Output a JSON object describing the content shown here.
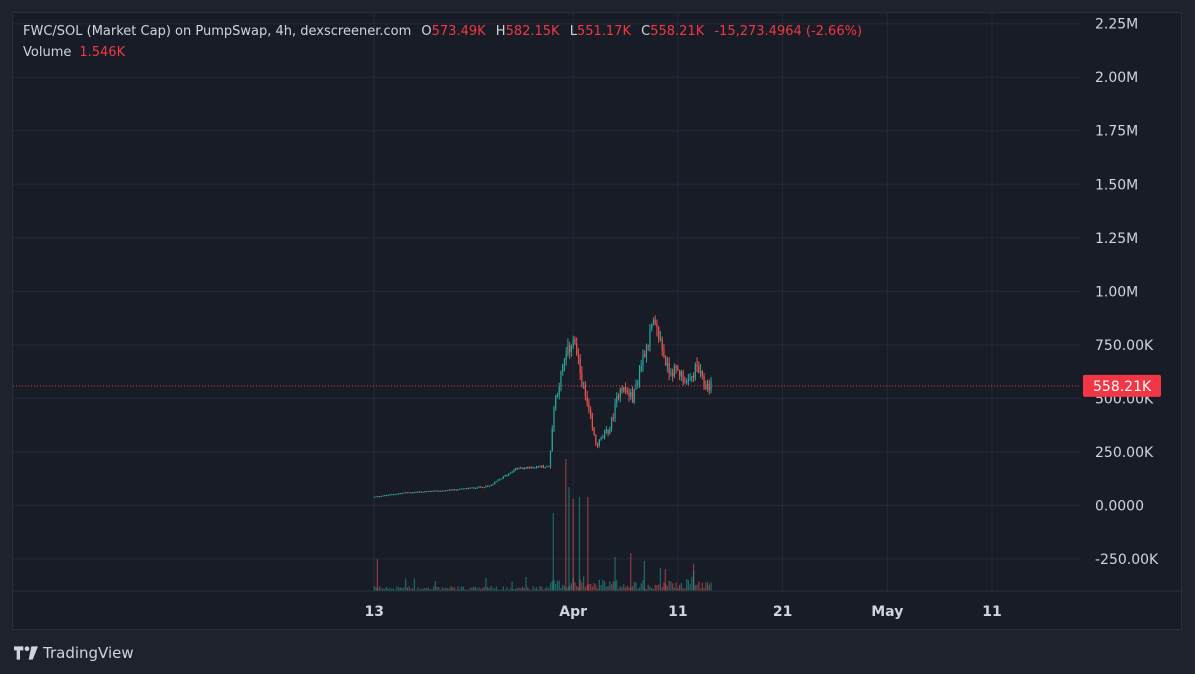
{
  "legend": {
    "symbol": "FWC/SOL (Market Cap) on PumpSwap, 4h, dexscreener.com",
    "open_label": "O",
    "open": "573.49K",
    "high_label": "H",
    "high": "582.15K",
    "low_label": "L",
    "low": "551.17K",
    "close_label": "C",
    "close": "558.21K",
    "change": "-15,273.4964 (-2.66%)",
    "volume_label": "Volume",
    "volume": "1.546K"
  },
  "branding": {
    "name": "TradingView"
  },
  "colors": {
    "up": "#26a69a",
    "down": "#ef5350",
    "last_price": "#f23645",
    "grid": "#252a36",
    "background": "#181c27"
  },
  "chart_data": {
    "type": "candlestick",
    "title": "",
    "timeframe": "4h",
    "y_axis": {
      "ticks": [
        {
          "value": 2250000,
          "label": "2.25M"
        },
        {
          "value": 2000000,
          "label": "2.00M"
        },
        {
          "value": 1750000,
          "label": "1.75M"
        },
        {
          "value": 1500000,
          "label": "1.50M"
        },
        {
          "value": 1250000,
          "label": "1.25M"
        },
        {
          "value": 1000000,
          "label": "1.00M"
        },
        {
          "value": 750000,
          "label": "750.00K"
        },
        {
          "value": 500000,
          "label": "500.00K"
        },
        {
          "value": 250000,
          "label": "250.00K"
        },
        {
          "value": 0,
          "label": "0.0000"
        },
        {
          "value": -250000,
          "label": "-250.00K"
        }
      ],
      "range": [
        -400000,
        2300000
      ]
    },
    "x_axis": {
      "ticks": [
        {
          "day": 13,
          "label": "13"
        },
        {
          "day": 32,
          "label": "Apr"
        },
        {
          "day": 42,
          "label": "11"
        },
        {
          "day": 52,
          "label": "21"
        },
        {
          "day": 62,
          "label": "May"
        },
        {
          "day": 72,
          "label": "11"
        }
      ],
      "range": [
        -21.5,
        80.5
      ],
      "unit": "days from Mar 1"
    },
    "last_price": {
      "value": 558210,
      "label": "558.21K"
    },
    "anchors": [
      {
        "day": 13.0,
        "value": 40000
      },
      {
        "day": 16.0,
        "value": 60000
      },
      {
        "day": 20.0,
        "value": 70000
      },
      {
        "day": 24.0,
        "value": 90000
      },
      {
        "day": 26.5,
        "value": 170000
      },
      {
        "day": 28.5,
        "value": 180000
      },
      {
        "day": 29.7,
        "value": 180000
      },
      {
        "day": 30.2,
        "value": 480000
      },
      {
        "day": 31.2,
        "value": 680000
      },
      {
        "day": 32.0,
        "value": 780000
      },
      {
        "day": 33.0,
        "value": 540000
      },
      {
        "day": 34.2,
        "value": 280000
      },
      {
        "day": 35.5,
        "value": 360000
      },
      {
        "day": 36.5,
        "value": 560000
      },
      {
        "day": 37.7,
        "value": 500000
      },
      {
        "day": 38.8,
        "value": 720000
      },
      {
        "day": 39.6,
        "value": 840000
      },
      {
        "day": 40.2,
        "value": 790000
      },
      {
        "day": 41.0,
        "value": 640000
      },
      {
        "day": 42.2,
        "value": 620000
      },
      {
        "day": 43.0,
        "value": 560000
      },
      {
        "day": 43.8,
        "value": 650000
      },
      {
        "day": 44.5,
        "value": 560000
      },
      {
        "day": 45.3,
        "value": 558210
      }
    ],
    "volume": {
      "scale_max": 500000,
      "spikes": [
        {
          "day": 13.3,
          "value": 160000
        },
        {
          "day": 30.1,
          "value": 390000
        },
        {
          "day": 31.3,
          "value": 660000
        },
        {
          "day": 31.6,
          "value": 520000
        },
        {
          "day": 32.0,
          "value": 460000
        },
        {
          "day": 32.6,
          "value": 470000
        },
        {
          "day": 33.4,
          "value": 470000
        },
        {
          "day": 36.0,
          "value": 170000
        },
        {
          "day": 37.5,
          "value": 190000
        },
        {
          "day": 38.8,
          "value": 150000
        },
        {
          "day": 40.8,
          "value": 110000
        },
        {
          "day": 43.5,
          "value": 100000
        }
      ]
    }
  }
}
